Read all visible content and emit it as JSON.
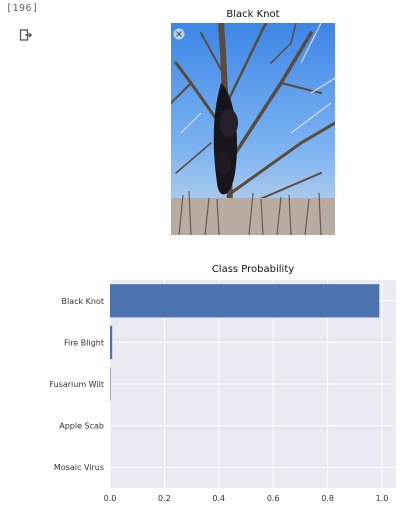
{
  "cell": {
    "counter": "[196]"
  },
  "output": {
    "icon": "output-redirect-icon"
  },
  "image_panel": {
    "title": "Black Knot",
    "close_icon": "close-icon"
  },
  "chart_data": {
    "type": "bar",
    "orientation": "horizontal",
    "title": "Class Probability",
    "categories": [
      "Black Knot",
      "Fire Blight",
      "Fusarium Wilt",
      "Apple Scab",
      "Mosaic Virus"
    ],
    "values": [
      0.99,
      0.008,
      0.002,
      0.0,
      0.0
    ],
    "xlim": [
      0,
      1.0
    ],
    "xticks": [
      "0.0",
      "0.2",
      "0.4",
      "0.6",
      "0.8",
      "1.0"
    ],
    "grid": true,
    "colors": {
      "bar": "#4c72b0",
      "plot_bg": "#eaeaf2",
      "grid": "#ffffff"
    }
  }
}
